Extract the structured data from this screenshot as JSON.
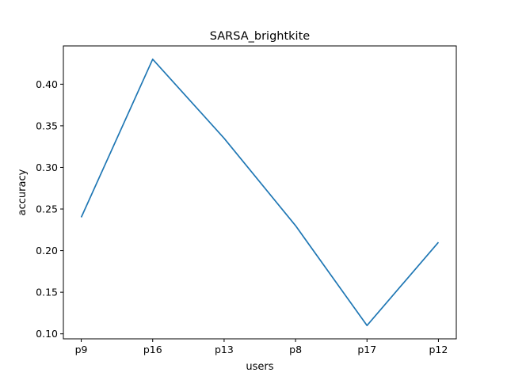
{
  "chart_data": {
    "type": "line",
    "title": "SARSA_brightkite",
    "xlabel": "users",
    "ylabel": "accuracy",
    "categories": [
      "p9",
      "p16",
      "p13",
      "p8",
      "p17",
      "p12"
    ],
    "series": [
      {
        "values": [
          0.24,
          0.43,
          0.335,
          0.23,
          0.11,
          0.21
        ]
      }
    ],
    "ylim": [
      0.094,
      0.446
    ],
    "yticks": [
      "0.10",
      "0.15",
      "0.20",
      "0.25",
      "0.30",
      "0.35",
      "0.40"
    ],
    "grid": false,
    "legend": "none",
    "colors": {
      "line": "#1f77b4"
    }
  }
}
